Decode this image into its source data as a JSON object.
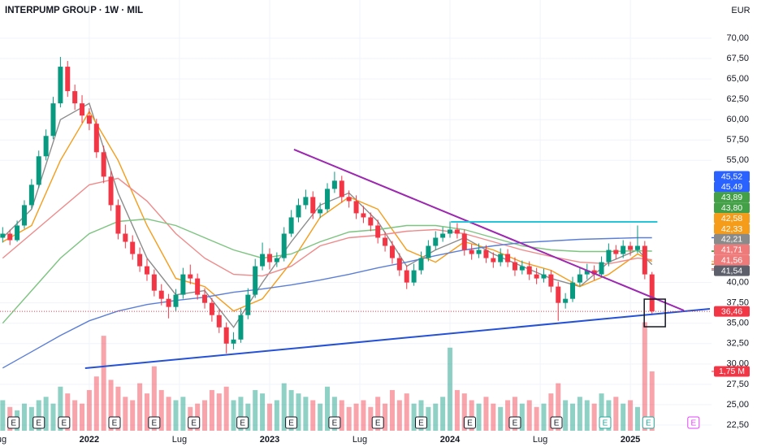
{
  "chart_data": {
    "type": "candlestick",
    "title": "INTERPUMP GROUP · 1W · MIL",
    "currency": "EUR",
    "xlim": [
      2021.505,
      2025.45
    ],
    "ylim": [
      21.8,
      74.69
    ],
    "y2lim": [
      0,
      12.7
    ],
    "grid": true,
    "up_color": "#089981",
    "down_color": "#f23645",
    "xticks": [
      {
        "value": 2021.5,
        "label": "Lug"
      },
      2022,
      {
        "value": 2022.5,
        "label": "Lug"
      },
      2023,
      {
        "value": 2023.5,
        "label": "Lug"
      },
      2024,
      {
        "value": 2024.5,
        "label": "Lug"
      },
      2025
    ],
    "yticks": [
      {
        "value": 70,
        "label": "70,00"
      },
      {
        "value": 67.5,
        "label": "67,50"
      },
      {
        "value": 65,
        "label": "65,00"
      },
      {
        "value": 62.5,
        "label": "62,50"
      },
      {
        "value": 60,
        "label": "60,00"
      },
      {
        "value": 57.5,
        "label": "57,50"
      },
      {
        "value": 55,
        "label": "55,00"
      },
      {
        "value": 40,
        "label": "40,00"
      },
      {
        "value": 37.5,
        "label": "37,50"
      },
      {
        "value": 35,
        "label": "35,00"
      },
      {
        "value": 32.5,
        "label": "32,50"
      },
      {
        "value": 30,
        "label": "30,00"
      },
      {
        "value": 27.5,
        "label": "27,50"
      },
      {
        "value": 25,
        "label": "25,00"
      },
      {
        "value": 22.5,
        "label": "22,50"
      }
    ],
    "candles": {
      "x": [
        2021.52,
        2021.56,
        2021.6,
        2021.64,
        2021.68,
        2021.72,
        2021.76,
        2021.8,
        2021.84,
        2021.88,
        2021.92,
        2021.96,
        2022,
        2022.04,
        2022.08,
        2022.12,
        2022.16,
        2022.2,
        2022.24,
        2022.28,
        2022.32,
        2022.36,
        2022.4,
        2022.44,
        2022.48,
        2022.52,
        2022.56,
        2022.6,
        2022.64,
        2022.68,
        2022.72,
        2022.76,
        2022.8,
        2022.84,
        2022.88,
        2022.92,
        2022.96,
        2023,
        2023.04,
        2023.08,
        2023.12,
        2023.16,
        2023.2,
        2023.24,
        2023.28,
        2023.32,
        2023.36,
        2023.4,
        2023.44,
        2023.48,
        2023.52,
        2023.56,
        2023.6,
        2023.64,
        2023.68,
        2023.72,
        2023.76,
        2023.8,
        2023.84,
        2023.88,
        2023.92,
        2023.96,
        2024,
        2024.04,
        2024.08,
        2024.12,
        2024.16,
        2024.2,
        2024.24,
        2024.28,
        2024.32,
        2024.36,
        2024.4,
        2024.44,
        2024.48,
        2024.52,
        2024.56,
        2024.6,
        2024.64,
        2024.68,
        2024.72,
        2024.76,
        2024.8,
        2024.84,
        2024.88,
        2024.92,
        2024.96,
        2025,
        2025.04,
        2025.08,
        2025.12
      ],
      "open": [
        45.5,
        46,
        45.2,
        47,
        49.5,
        52,
        55.5,
        58,
        62,
        66.5,
        63.5,
        62,
        60.5,
        59.5,
        56,
        53,
        49.5,
        46,
        45,
        43.5,
        42,
        41,
        39,
        38,
        37,
        38.5,
        41,
        40.5,
        38.5,
        37.5,
        36,
        34.5,
        32.5,
        33,
        36,
        38.5,
        42,
        43.5,
        42.5,
        43,
        46,
        48,
        49.5,
        50.5,
        48.5,
        49,
        51.5,
        52.5,
        50.5,
        50,
        48.5,
        48,
        47,
        45.5,
        44.5,
        43,
        41.5,
        40,
        41.5,
        43,
        44.5,
        45.5,
        46,
        46.5,
        46,
        44,
        43.5,
        44,
        43,
        42.5,
        43.5,
        42.5,
        41.5,
        42,
        41,
        40.5,
        41,
        39.5,
        37.5,
        38,
        40,
        41,
        41.5,
        41,
        42.5,
        44,
        43.5,
        44.5,
        44,
        44.5,
        41
      ],
      "high": [
        46.8,
        46.5,
        47.6,
        50.1,
        52.7,
        56.2,
        58.8,
        62.8,
        67.7,
        67.2,
        64.3,
        63,
        61.4,
        60.1,
        56.8,
        53.7,
        50.2,
        47.1,
        45.8,
        44.3,
        42.9,
        41.6,
        39.8,
        38.6,
        39.2,
        41.8,
        42.2,
        41.1,
        39.3,
        38.1,
        36.7,
        35.1,
        33.9,
        36.8,
        39.3,
        42.9,
        44.9,
        44.2,
        43.7,
        46.8,
        48.9,
        50.3,
        51.4,
        51.2,
        49.8,
        52.2,
        53.6,
        53.1,
        51.3,
        50.7,
        49.4,
        48.6,
        47.7,
        46.2,
        45.1,
        43.6,
        42.1,
        42.3,
        43.8,
        45.2,
        46.3,
        46.8,
        47.5,
        47.3,
        46.5,
        44.7,
        44.8,
        44.6,
        43.7,
        44.2,
        44.1,
        43.1,
        42.7,
        42.6,
        41.8,
        41.7,
        41.5,
        40.1,
        38.7,
        40.7,
        41.8,
        42.3,
        42.1,
        43.2,
        44.8,
        44.6,
        45.2,
        45,
        47,
        45.1,
        41.3
      ],
      "low": [
        44.9,
        44.6,
        45,
        46.6,
        49.1,
        51.6,
        55,
        57.6,
        61.5,
        62.8,
        61.2,
        59.6,
        58.7,
        55.3,
        52.2,
        48.8,
        45.3,
        44.2,
        42.8,
        41.3,
        40.2,
        38.3,
        37.2,
        35.6,
        36.5,
        38,
        39.8,
        37.9,
        36.8,
        35.2,
        33.8,
        31.3,
        31.8,
        32.6,
        35.5,
        38.1,
        41.5,
        41.6,
        41.9,
        42.6,
        45.6,
        47.4,
        49,
        47.8,
        47.9,
        48.6,
        51,
        49.8,
        49.2,
        47.8,
        47.3,
        46.3,
        44.8,
        43.8,
        42.3,
        40.8,
        39.2,
        39.6,
        41,
        42.6,
        44,
        45,
        45.5,
        45.4,
        43.3,
        42.8,
        43,
        42.4,
        41.8,
        42,
        41.9,
        40.8,
        41,
        40.3,
        39.8,
        40,
        38.8,
        35.3,
        36.8,
        37.6,
        39.5,
        40.4,
        40.3,
        40.6,
        42,
        42.9,
        43,
        43.3,
        43.6,
        40.4,
        36
      ],
      "close": [
        46,
        45.2,
        47,
        49.5,
        52,
        55.5,
        58,
        62,
        66.5,
        63.5,
        62,
        60.5,
        59.5,
        56,
        53,
        49.5,
        46,
        45,
        43.5,
        42,
        41,
        39,
        38,
        37,
        38.5,
        41,
        40.5,
        38.5,
        37.5,
        36,
        34.5,
        32.5,
        33,
        36,
        38.5,
        42,
        43.5,
        42.5,
        43,
        46,
        48,
        49.5,
        50.5,
        48.5,
        49,
        51.5,
        52.5,
        50.5,
        50,
        48.5,
        48,
        47,
        45.5,
        44.5,
        43,
        41.5,
        40,
        41.5,
        43,
        44.5,
        45.5,
        46,
        46.5,
        46,
        44,
        43.5,
        44,
        43,
        42.5,
        43.5,
        42.5,
        41.5,
        42,
        41,
        40.5,
        41,
        39.5,
        37.5,
        38,
        40,
        41,
        41.5,
        41,
        42.5,
        44,
        43.5,
        44.5,
        44,
        44.5,
        41,
        36.46
      ],
      "volume": [
        0.9,
        0.7,
        0.6,
        0.8,
        0.7,
        0.9,
        1.0,
        0.8,
        1.3,
        1.1,
        0.9,
        0.8,
        1.2,
        1.6,
        2.8,
        1.5,
        1.3,
        1.0,
        0.9,
        1.4,
        1.1,
        1.9,
        1.2,
        1.0,
        0.9,
        1.0,
        0.7,
        0.8,
        0.9,
        1.2,
        1.1,
        1.3,
        0.9,
        1.0,
        0.8,
        1.2,
        1.1,
        0.8,
        0.9,
        1.4,
        1.2,
        1.1,
        1.0,
        0.9,
        0.8,
        1.3,
        1.0,
        0.9,
        0.7,
        0.8,
        0.9,
        0.7,
        1.0,
        0.8,
        1.2,
        0.9,
        1.1,
        0.8,
        0.9,
        0.7,
        0.8,
        1.0,
        2.45,
        1.2,
        1.1,
        0.9,
        0.8,
        1.0,
        0.8,
        0.7,
        0.9,
        1.0,
        0.8,
        0.9,
        0.7,
        0.8,
        1.1,
        1.4,
        0.9,
        0.8,
        1.0,
        0.9,
        0.8,
        1.1,
        0.9,
        1.0,
        0.8,
        0.9,
        0.7,
        3.2,
        1.75
      ]
    },
    "averages": [
      {
        "color": "#8c8c8c",
        "x": [
          2021.52,
          2021.68,
          2021.84,
          2022,
          2022.16,
          2022.32,
          2022.48,
          2022.64,
          2022.8,
          2022.96,
          2023.12,
          2023.28,
          2023.44,
          2023.6,
          2023.76,
          2023.92,
          2024.08,
          2024.24,
          2024.4,
          2024.56,
          2024.72,
          2024.88,
          2025.04,
          2025.12
        ],
        "values": [
          45.5,
          49,
          60,
          62,
          51,
          43,
          38.5,
          39,
          34.5,
          40,
          45,
          49.5,
          51,
          47.5,
          42,
          44,
          45.5,
          43.5,
          42,
          40.5,
          39.5,
          42.5,
          44,
          42.2
        ]
      },
      {
        "color": "#f59d1a",
        "x": [
          2021.52,
          2021.68,
          2021.84,
          2022,
          2022.16,
          2022.32,
          2022.48,
          2022.64,
          2022.8,
          2022.96,
          2023.12,
          2023.28,
          2023.44,
          2023.6,
          2023.76,
          2023.92,
          2024.08,
          2024.24,
          2024.4,
          2024.56,
          2024.72,
          2024.88,
          2025.04,
          2025.12
        ],
        "values": [
          45,
          47,
          55,
          61,
          55,
          47,
          40.5,
          39.5,
          36.5,
          38,
          42.5,
          48,
          50.5,
          49,
          44,
          42.5,
          45,
          44,
          42.5,
          41.5,
          39.5,
          41,
          43.5,
          42.6
        ]
      },
      {
        "color": "#f08a8a",
        "x": [
          2021.52,
          2021.68,
          2021.84,
          2022,
          2022.16,
          2022.32,
          2022.48,
          2022.64,
          2022.8,
          2022.96,
          2023.12,
          2023.28,
          2023.44,
          2023.6,
          2023.76,
          2023.92,
          2024.08,
          2024.24,
          2024.4,
          2024.56,
          2024.72,
          2024.88,
          2025.04,
          2025.12
        ],
        "values": [
          43,
          46,
          49,
          52,
          52.8,
          50,
          46,
          43,
          41,
          40.8,
          42,
          44.5,
          45.5,
          45.8,
          46.3,
          46.5,
          46,
          45,
          44,
          43.2,
          42.5,
          42.3,
          43,
          42.8
        ]
      },
      {
        "color": "#7cc47f",
        "x": [
          2021.52,
          2021.68,
          2021.84,
          2022,
          2022.16,
          2022.32,
          2022.48,
          2022.64,
          2022.8,
          2022.96,
          2023.12,
          2023.28,
          2023.44,
          2023.6,
          2023.76,
          2023.92,
          2024.08,
          2024.24,
          2024.4,
          2024.56,
          2024.72,
          2024.88,
          2025.04,
          2025.12
        ],
        "values": [
          35,
          39,
          43,
          46,
          47.5,
          47.8,
          47,
          45.5,
          44,
          43,
          43.5,
          45,
          46.2,
          46.5,
          47,
          47,
          46.5,
          45.5,
          44.5,
          44,
          43.8,
          43.8,
          43.9,
          43.85
        ]
      },
      {
        "color": "#5b7fd6",
        "x": [
          2021.52,
          2021.68,
          2021.84,
          2022,
          2022.16,
          2022.32,
          2022.48,
          2022.64,
          2022.8,
          2022.96,
          2023.12,
          2023.28,
          2023.44,
          2023.6,
          2023.76,
          2023.92,
          2024.08,
          2024.24,
          2024.4,
          2024.56,
          2024.72,
          2024.88,
          2025.04,
          2025.12
        ],
        "values": [
          29.5,
          31.5,
          33.5,
          35.3,
          36.5,
          37.3,
          37.8,
          38.2,
          38.8,
          39.2,
          39.7,
          40.3,
          41,
          41.8,
          42.5,
          43.3,
          44,
          44.5,
          44.9,
          45.1,
          45.3,
          45.4,
          45.5,
          45.5
        ]
      }
    ],
    "trendlines": [
      {
        "color": "#9c27b0",
        "x": [
          2023.135,
          2025.297
        ],
        "y": [
          56.33,
          36.57
        ]
      },
      {
        "color": "#26c6da",
        "x": [
          2024.005,
          2025.15
        ],
        "y": [
          47.45,
          47.45
        ]
      },
      {
        "color": "#2451d6",
        "x": [
          2021.977,
          2025.441
        ],
        "y": [
          29.48,
          36.77
        ]
      }
    ],
    "box": {
      "x": [
        2025.077,
        2025.194
      ],
      "y": [
        37.96,
        34.57
      ]
    },
    "price_labels": [
      {
        "value": 45.52,
        "label": "45,52",
        "color": "#2962ff"
      },
      {
        "value": 45.49,
        "label": "45,49",
        "color": "#2962ff"
      },
      {
        "value": 43.89,
        "label": "43,89",
        "color": "#43a047"
      },
      {
        "value": 43.8,
        "label": "43,80",
        "color": "#43a047"
      },
      {
        "value": 42.58,
        "label": "42,58",
        "color": "#f59d1a"
      },
      {
        "value": 42.33,
        "label": "42,33",
        "color": "#f59d1a"
      },
      {
        "value": 42.21,
        "label": "42,21",
        "color": "#8a8a8a"
      },
      {
        "value": 41.71,
        "label": "41,71",
        "color": "#ef7a7a"
      },
      {
        "value": 41.56,
        "label": "41,56",
        "color": "#ef7a7a"
      },
      {
        "value": 41.54,
        "label": "41,54",
        "color": "#5d606b"
      }
    ],
    "last_price_label": {
      "value": 36.46,
      "label": "36,46",
      "color": "#f23645"
    },
    "volume_label": {
      "value": 1.75,
      "label": "1,75 M",
      "color": "#f23645"
    },
    "events": {
      "x": [
        2021.58,
        2021.72,
        2021.86,
        2022.14,
        2022.36,
        2022.58,
        2022.85,
        2023.12,
        2023.36,
        2023.6,
        2023.84,
        2024.11,
        2024.36,
        2024.59,
        2024.86,
        2025.1,
        2025.35
      ],
      "labels": [
        "E",
        "E",
        "E",
        "E",
        "E",
        "E",
        "E",
        "E",
        "E",
        "E",
        "E",
        "E",
        "E",
        "E",
        "E",
        "E",
        "E"
      ],
      "colors": [
        "#131722",
        "#131722",
        "#131722",
        "#131722",
        "#131722",
        "#131722",
        "#131722",
        "#131722",
        "#131722",
        "#131722",
        "#131722",
        "#131722",
        "#131722",
        "#131722",
        "#26a69a",
        "#26a69a",
        "#e040fb"
      ]
    }
  }
}
